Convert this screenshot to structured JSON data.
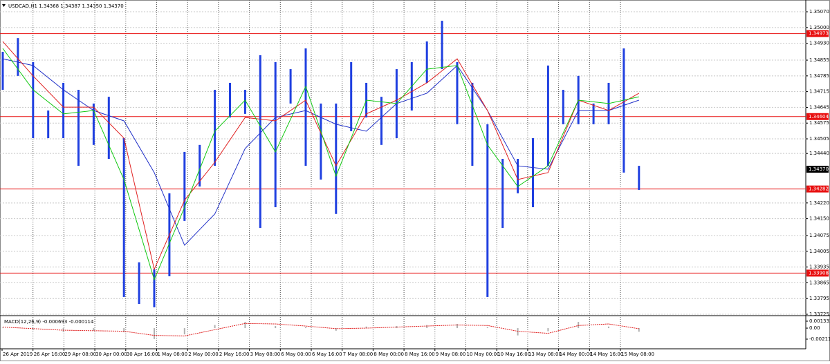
{
  "chart_data": {
    "type": "candlestick",
    "title": "USDCAD,H1  1.34368 1.34387 1.34350 1.34370",
    "color": "#1f3fe0",
    "ylim": [
      1.33725,
      1.35107
    ],
    "yticks": [
      {
        "value": 1.3507,
        "label": "1.35070"
      },
      {
        "value": 1.35,
        "label": "1.35000"
      },
      {
        "value": 1.3493,
        "label": "1.34930"
      },
      1.34855,
      1.34785,
      1.34715,
      1.34645,
      1.34575,
      1.34505,
      {
        "value": 1.3444,
        "label": "1.34440"
      },
      {
        "value": 1.3422,
        "label": "1.34220"
      },
      {
        "value": 1.3415,
        "label": "1.34150"
      },
      1.34075,
      1.34005,
      1.33935,
      1.33865,
      1.33795,
      1.33725
    ],
    "grid": true,
    "last": {
      "value": 1.3437,
      "label": "1.34370"
    },
    "levels": {
      "color": "#e81010",
      "values": [
        1.34973,
        1.34604,
        1.34282,
        1.33908
      ]
    },
    "xlabels": [
      "26 Apr 2019",
      "26 Apr 16:00",
      "29 Apr 08:00",
      "30 Apr 00:00",
      "30 Apr 16:00",
      "1 May 08:00",
      "2 May 00:00",
      "2 May 16:00",
      "3 May 08:00",
      "6 May 00:00",
      "6 May 16:00",
      "7 May 08:00",
      "8 May 00:00",
      "8 May 16:00",
      "9 May 08:00",
      "10 May 00:00",
      "10 May 16:00",
      "13 May 08:00",
      "14 May 00:00",
      "14 May 16:00",
      "15 May 08:00"
    ],
    "bars": [
      [
        1.34892,
        1.34723
      ],
      [
        1.34953,
        1.34785
      ],
      [
        1.34846,
        1.34508
      ],
      [
        1.34631,
        1.34508
      ],
      [
        1.34754,
        1.34508
      ],
      [
        1.34723,
        1.34385
      ],
      [
        1.34662,
        1.34478
      ],
      [
        1.34692,
        1.34416
      ],
      [
        1.34508,
        1.33802
      ],
      [
        1.33956,
        1.33771
      ],
      [
        1.33925,
        1.33756
      ],
      [
        1.34263,
        1.33894
      ],
      [
        1.34447,
        1.3414
      ],
      [
        1.34478,
        1.34293
      ],
      [
        1.34723,
        1.34385
      ],
      [
        1.34754,
        1.346
      ],
      [
        1.34723,
        1.34616
      ],
      [
        1.34877,
        1.34109
      ],
      [
        1.34846,
        1.34201
      ],
      [
        1.34815,
        1.34662
      ],
      [
        1.34907,
        1.34385
      ],
      [
        1.34662,
        1.34324
      ],
      [
        1.34662,
        1.34171
      ],
      [
        1.34846,
        1.34539
      ],
      [
        1.34754,
        1.346
      ],
      [
        1.34692,
        1.34478
      ],
      [
        1.34815,
        1.34508
      ],
      [
        1.34846,
        1.34631
      ],
      [
        1.34938,
        1.34754
      ],
      [
        1.3503,
        1.34815
      ],
      [
        1.34846,
        1.3457
      ],
      [
        1.34754,
        1.34385
      ],
      [
        1.3457,
        1.33802
      ],
      [
        1.34416,
        1.34109
      ],
      [
        1.34416,
        1.34263
      ],
      [
        1.34508,
        1.34201
      ],
      [
        1.34831,
        1.34385
      ],
      [
        1.34723,
        1.3457
      ],
      [
        1.34785,
        1.3457
      ],
      [
        1.34662,
        1.3457
      ],
      [
        1.34754,
        1.3457
      ],
      [
        1.34907,
        1.34355
      ],
      [
        1.34385,
        1.34278
      ]
    ],
    "moving_averages": [
      {
        "color": "#2030c8",
        "values": [
          1.34861,
          1.34831,
          1.34723,
          1.34631,
          1.34585,
          1.34355,
          1.34032,
          1.34171,
          1.34462,
          1.346,
          1.34631,
          1.3457,
          1.34539,
          1.34662,
          1.34708,
          1.34831,
          1.34631,
          1.34385,
          1.3437,
          1.34631,
          1.34631,
          1.34677
        ]
      },
      {
        "color": "#e02020",
        "values": [
          1.34938,
          1.34785,
          1.34646,
          1.34646,
          1.34508,
          1.33925,
          1.34232,
          1.34401,
          1.346,
          1.34585,
          1.34677,
          1.34385,
          1.34616,
          1.34677,
          1.34754,
          1.34861,
          1.34631,
          1.34324,
          1.34355,
          1.34677,
          1.34631,
          1.34708
        ]
      },
      {
        "color": "#10c810",
        "values": [
          1.34907,
          1.34723,
          1.34616,
          1.34631,
          1.34324,
          1.33879,
          1.34201,
          1.34539,
          1.34677,
          1.34447,
          1.34738,
          1.34339,
          1.34677,
          1.34662,
          1.34815,
          1.34831,
          1.34478,
          1.34293,
          1.34385,
          1.34677,
          1.34662,
          1.34692
        ]
      }
    ],
    "macd": {
      "title": "MACD(12,26,9) -0.000693 -0.000114",
      "ylim": [
        -0.002777,
        0.002261
      ],
      "yticks": [
        0.001333,
        {
          "value": 0,
          "label": "0.00"
        },
        -0.002114
      ],
      "histogram_color": "#b0b0b0",
      "signal_color": "#e02020",
      "histogram": [
        0.0001,
        -0.0004,
        -0.0007,
        -0.0005,
        -0.0008,
        -0.0021,
        -0.0012,
        0.0006,
        0.0012,
        0.0004,
        0.0002,
        -0.0005,
        0.0003,
        0.0004,
        0.0006,
        0.0008,
        0.0002,
        -0.0014,
        -0.0006,
        0.0012,
        0.0003,
        -0.000693
      ],
      "signal": [
        0.0002,
        -0.0001,
        -0.0004,
        -0.0005,
        -0.0006,
        -0.0014,
        -0.0015,
        -0.0003,
        0.0009,
        0.0008,
        0.0004,
        -0.0001,
        0,
        0.0002,
        0.0004,
        0.0006,
        0.0005,
        -0.0006,
        -0.001,
        0.0005,
        0.0008,
        -0.000114
      ]
    }
  }
}
